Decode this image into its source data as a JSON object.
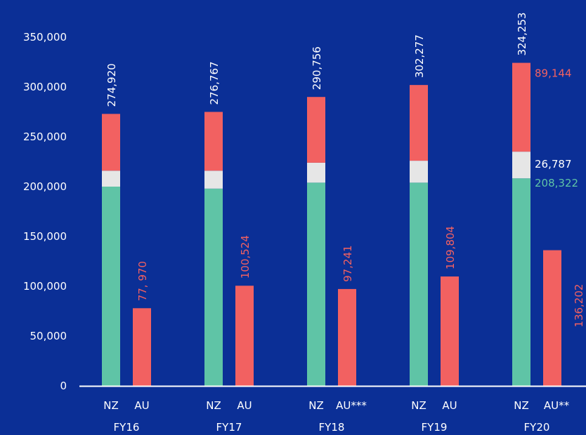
{
  "chart_data": {
    "type": "bar",
    "stacked": true,
    "title": "",
    "xlabel": "",
    "ylabel": "",
    "ylim": [
      0,
      350000
    ],
    "y_ticks": [
      "0",
      "50,000",
      "100,000",
      "150,000",
      "200,000",
      "250,000",
      "300,000",
      "350,000"
    ],
    "y_tick_values": [
      0,
      50000,
      100000,
      150000,
      200000,
      250000,
      300000,
      350000
    ],
    "grid": false,
    "colors": {
      "background": "#0b2f96",
      "green": "#5fc4a6",
      "grey": "#e6e6e6",
      "red": "#f26161",
      "label_white": "#ffffff",
      "label_red": "#f26161",
      "label_green": "#5fc4a6"
    },
    "groups": [
      {
        "year": "FY16",
        "nz": {
          "label": "NZ",
          "segments": [
            200000,
            16000,
            57000
          ],
          "total_label": "274,920"
        },
        "au": {
          "label": "AU",
          "value": 77970,
          "value_label": "77, 970"
        }
      },
      {
        "year": "FY17",
        "nz": {
          "label": "NZ",
          "segments": [
            198000,
            18000,
            59000
          ],
          "total_label": "276,767"
        },
        "au": {
          "label": "AU",
          "value": 100524,
          "value_label": "100,524"
        }
      },
      {
        "year": "FY18",
        "nz": {
          "label": "NZ",
          "segments": [
            204000,
            20000,
            66000
          ],
          "total_label": "290,756"
        },
        "au": {
          "label": "AU***",
          "value": 97241,
          "value_label": "97,241"
        }
      },
      {
        "year": "FY19",
        "nz": {
          "label": "NZ",
          "segments": [
            204000,
            22000,
            76000
          ],
          "total_label": "302,277"
        },
        "au": {
          "label": "AU",
          "value": 109804,
          "value_label": "109,804"
        }
      },
      {
        "year": "FY20",
        "nz": {
          "label": "NZ",
          "segments": [
            208322,
            26787,
            89144
          ],
          "total_label": "324,253",
          "segment_labels": [
            "208,322",
            "26,787",
            "89,144"
          ]
        },
        "au": {
          "label": "AU**",
          "value": 136202,
          "value_label": "136,202"
        }
      }
    ]
  }
}
